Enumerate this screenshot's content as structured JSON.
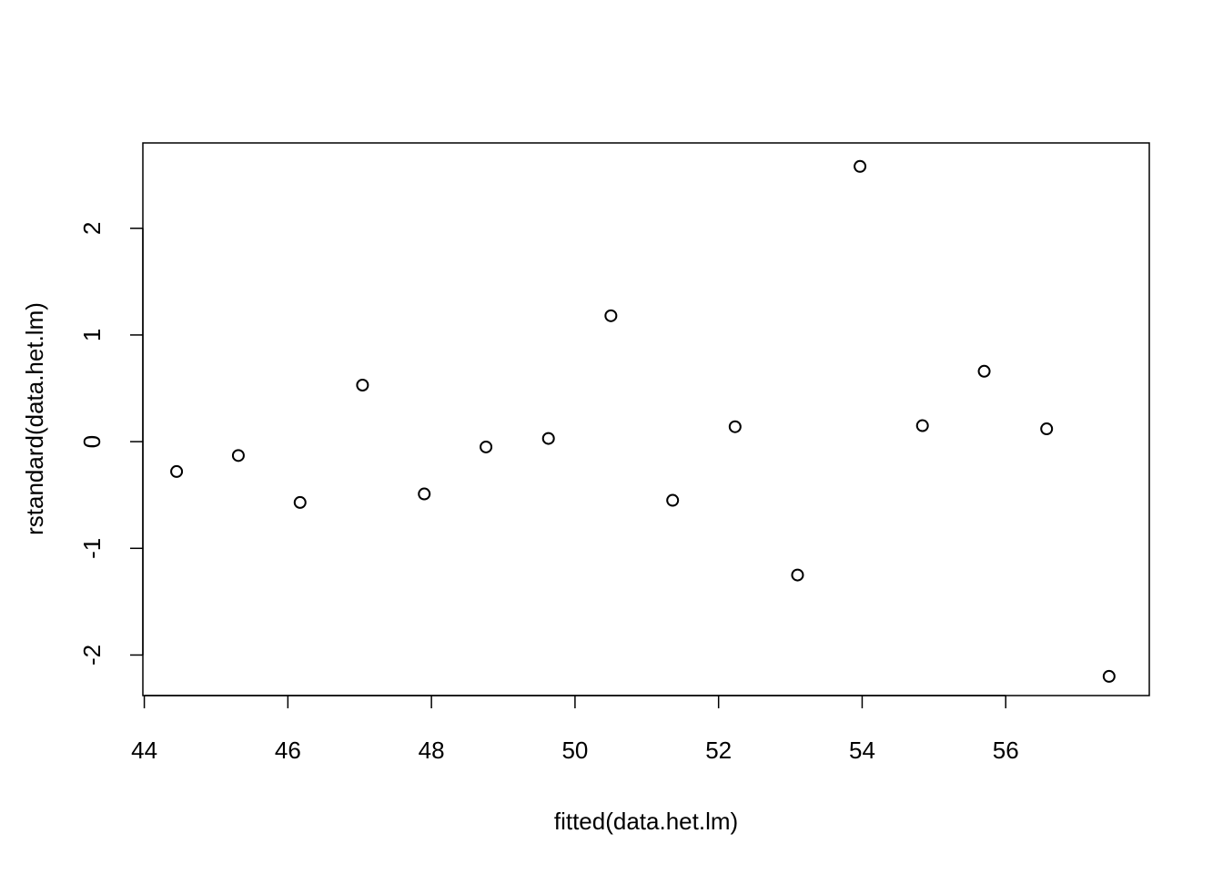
{
  "chart_data": {
    "type": "scatter",
    "title": "",
    "xlabel": "fitted(data.het.lm)",
    "ylabel": "rstandard(data.het.lm)",
    "xlim": [
      43.98,
      58.0
    ],
    "ylim": [
      -2.38,
      2.8
    ],
    "x_ticks": [
      44,
      46,
      48,
      50,
      52,
      54,
      56
    ],
    "x_tick_labels": [
      "44",
      "46",
      "48",
      "50",
      "52",
      "54",
      "56"
    ],
    "y_ticks": [
      -2,
      -1,
      0,
      1,
      2
    ],
    "y_tick_labels": [
      "-2",
      "-1",
      "0",
      "1",
      "2"
    ],
    "grid": false,
    "marker": "open-circle",
    "color": "#000000",
    "series": [
      {
        "x": [
          44.45,
          45.31,
          46.17,
          47.04,
          47.9,
          48.76,
          49.63,
          50.5,
          51.36,
          52.23,
          53.1,
          53.97,
          54.84,
          55.7,
          56.57,
          57.44
        ],
        "y": [
          -0.28,
          -0.13,
          -0.57,
          0.53,
          -0.49,
          -0.05,
          0.03,
          1.18,
          -0.55,
          0.14,
          -1.25,
          2.58,
          0.15,
          0.66,
          0.12,
          -2.2
        ]
      }
    ]
  }
}
